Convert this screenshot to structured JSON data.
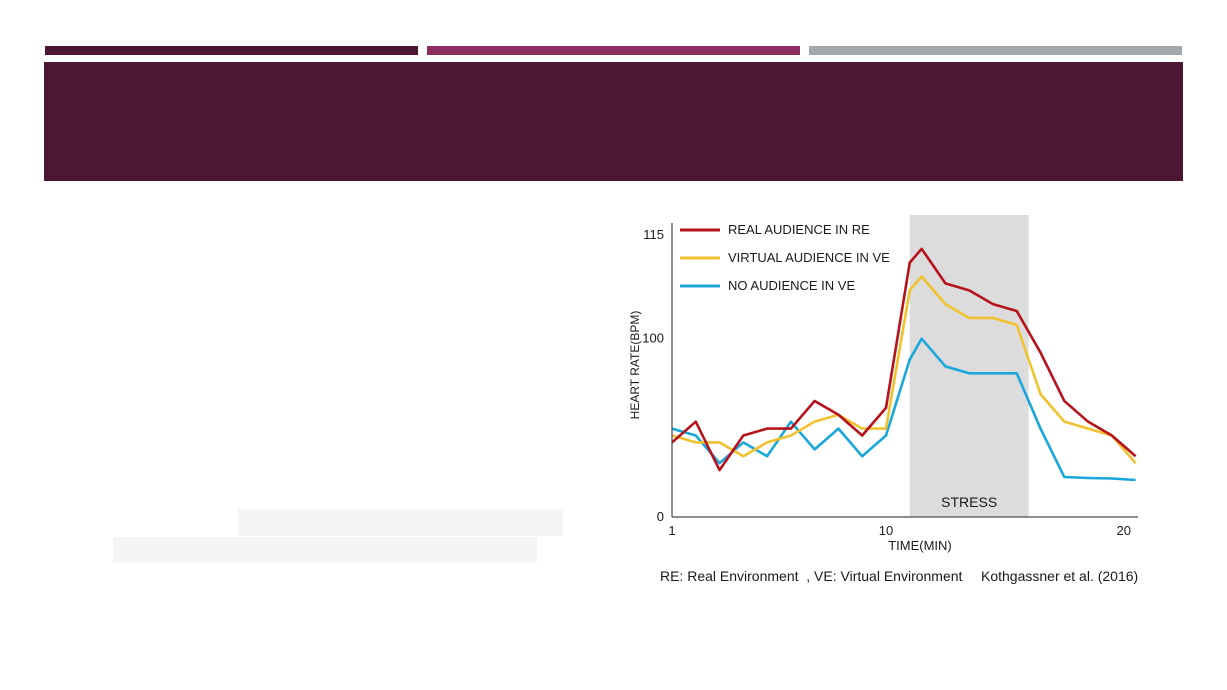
{
  "header": {
    "bar_colors": [
      "#4a1733",
      "#8b2d5e",
      "#a3a6ab"
    ],
    "band_color": "#4b1734"
  },
  "chart_data": {
    "type": "line",
    "title": "",
    "xlabel": "TIME(MIN)",
    "ylabel": "HEART RATE(BPM)",
    "xlim": [
      1,
      20.6
    ],
    "ylim": [
      0,
      115
    ],
    "x_ticks": [
      1,
      10,
      20
    ],
    "y_ticks": [
      0,
      100,
      115
    ],
    "shaded_region": {
      "x": [
        11,
        16
      ],
      "label": "STRESS",
      "color": "#dcdcdc"
    },
    "legend_position": "top-left",
    "series": [
      {
        "name": "REAL AUDIENCE IN RE",
        "color": "#b5121b",
        "x": [
          1,
          2,
          3,
          4,
          5,
          6,
          7,
          8,
          9,
          10,
          11,
          11.5,
          12.5,
          13.5,
          14.5,
          15.5,
          16.5,
          17.5,
          18.5,
          19.5,
          20.5
        ],
        "values": [
          85,
          88,
          81,
          86,
          87,
          87,
          91,
          89,
          86,
          90,
          111,
          113,
          108,
          107,
          105,
          104,
          98,
          91,
          88,
          86,
          83
        ]
      },
      {
        "name": "VIRTUAL AUDIENCE IN VE",
        "color": "#f2c12e",
        "x": [
          1,
          2,
          3,
          4,
          5,
          6,
          7,
          8,
          9,
          10,
          11,
          11.5,
          12.5,
          13.5,
          14.5,
          15.5,
          16.5,
          17.5,
          18.5,
          19.5,
          20.5
        ],
        "values": [
          86,
          85,
          85,
          83,
          85,
          86,
          88,
          89,
          87,
          87,
          107,
          109,
          105,
          103,
          103,
          102,
          92,
          88,
          87,
          86,
          82
        ]
      },
      {
        "name": "NO AUDIENCE IN VE",
        "color": "#1aa7dc",
        "x": [
          1,
          2,
          3,
          4,
          5,
          6,
          7,
          8,
          9,
          10,
          11,
          11.5,
          12.5,
          13.5,
          14.5,
          15.5,
          16.5,
          17.5,
          18.5,
          19.5,
          20.5
        ],
        "values": [
          87,
          86,
          82,
          85,
          83,
          88,
          84,
          87,
          83,
          86,
          97,
          100,
          96,
          95,
          95,
          95,
          87,
          80,
          78,
          77,
          74
        ]
      }
    ],
    "annotations": [
      "RE: Real Environment  , VE: Virtual Environment",
      "Kothgassner et al. (2016)"
    ]
  }
}
